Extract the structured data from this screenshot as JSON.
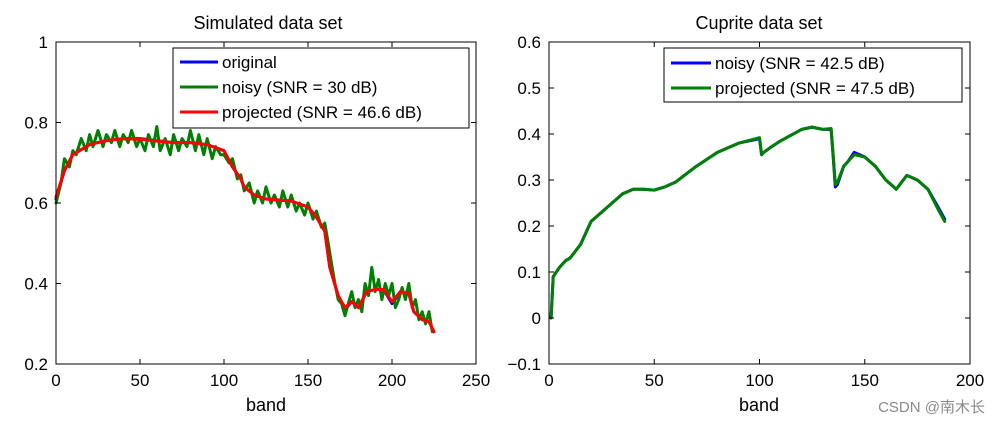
{
  "watermark": "CSDN @南木长",
  "chart_data": [
    {
      "type": "line",
      "title": "Simulated data set",
      "xlabel": "band",
      "ylabel": "",
      "xlim": [
        0,
        250
      ],
      "ylim": [
        0.2,
        1.0
      ],
      "xticks": [
        0,
        50,
        100,
        150,
        200,
        250
      ],
      "yticks": [
        0.2,
        0.4,
        0.6,
        0.8,
        1.0
      ],
      "xtick_labels": [
        "0",
        "50",
        "100",
        "150",
        "200",
        "250"
      ],
      "ytick_labels": [
        "0.2",
        "0.4",
        "0.6",
        "0.8",
        "1"
      ],
      "legend_position": "top-right",
      "series": [
        {
          "name": "original",
          "color": "#0000ff",
          "x": [
            0,
            5,
            10,
            20,
            30,
            40,
            50,
            60,
            70,
            80,
            90,
            100,
            105,
            110,
            112,
            118,
            125,
            140,
            150,
            155,
            160,
            163,
            168,
            172,
            176,
            180,
            185,
            190,
            195,
            200,
            205,
            210,
            213,
            218,
            222,
            225
          ],
          "y": [
            0.61,
            0.68,
            0.72,
            0.745,
            0.755,
            0.76,
            0.76,
            0.755,
            0.75,
            0.75,
            0.745,
            0.73,
            0.69,
            0.66,
            0.64,
            0.62,
            0.61,
            0.605,
            0.59,
            0.565,
            0.53,
            0.44,
            0.37,
            0.335,
            0.355,
            0.34,
            0.38,
            0.385,
            0.385,
            0.35,
            0.38,
            0.375,
            0.33,
            0.31,
            0.305,
            0.28
          ]
        },
        {
          "name": "noisy (SNR = 30 dB)",
          "color": "#008000",
          "x": [
            0,
            3,
            5,
            8,
            10,
            12,
            15,
            18,
            20,
            22,
            25,
            28,
            30,
            33,
            35,
            38,
            40,
            43,
            45,
            48,
            50,
            53,
            55,
            58,
            60,
            62,
            65,
            68,
            70,
            73,
            75,
            78,
            80,
            83,
            85,
            88,
            90,
            93,
            95,
            98,
            100,
            103,
            105,
            108,
            110,
            112,
            115,
            118,
            120,
            123,
            125,
            128,
            130,
            133,
            135,
            138,
            140,
            143,
            145,
            148,
            150,
            153,
            155,
            158,
            160,
            162,
            164,
            166,
            168,
            170,
            172,
            174,
            176,
            178,
            180,
            182,
            184,
            186,
            188,
            190,
            192,
            194,
            196,
            198,
            200,
            202,
            204,
            206,
            208,
            210,
            212,
            214,
            216,
            218,
            220,
            222,
            224
          ],
          "y": [
            0.6,
            0.65,
            0.71,
            0.69,
            0.73,
            0.72,
            0.76,
            0.73,
            0.77,
            0.74,
            0.78,
            0.74,
            0.77,
            0.75,
            0.78,
            0.74,
            0.77,
            0.75,
            0.78,
            0.74,
            0.76,
            0.73,
            0.77,
            0.74,
            0.79,
            0.73,
            0.76,
            0.72,
            0.77,
            0.73,
            0.76,
            0.74,
            0.78,
            0.73,
            0.77,
            0.72,
            0.76,
            0.71,
            0.74,
            0.72,
            0.72,
            0.7,
            0.71,
            0.66,
            0.67,
            0.63,
            0.65,
            0.6,
            0.63,
            0.6,
            0.64,
            0.6,
            0.62,
            0.59,
            0.63,
            0.59,
            0.62,
            0.58,
            0.6,
            0.57,
            0.6,
            0.56,
            0.58,
            0.54,
            0.55,
            0.5,
            0.45,
            0.4,
            0.36,
            0.35,
            0.32,
            0.35,
            0.38,
            0.34,
            0.36,
            0.33,
            0.4,
            0.37,
            0.44,
            0.38,
            0.41,
            0.36,
            0.4,
            0.37,
            0.4,
            0.34,
            0.36,
            0.39,
            0.36,
            0.4,
            0.34,
            0.36,
            0.31,
            0.33,
            0.3,
            0.33,
            0.28
          ]
        },
        {
          "name": "projected (SNR = 46.6 dB)",
          "color": "#ff0000",
          "x": [
            0,
            5,
            10,
            20,
            30,
            40,
            50,
            60,
            70,
            80,
            90,
            100,
            105,
            110,
            112,
            118,
            125,
            140,
            150,
            155,
            160,
            163,
            168,
            172,
            176,
            180,
            185,
            190,
            195,
            200,
            205,
            210,
            213,
            218,
            222,
            225
          ],
          "y": [
            0.615,
            0.68,
            0.72,
            0.745,
            0.755,
            0.76,
            0.758,
            0.754,
            0.75,
            0.75,
            0.745,
            0.73,
            0.69,
            0.66,
            0.64,
            0.62,
            0.61,
            0.605,
            0.59,
            0.565,
            0.53,
            0.44,
            0.37,
            0.34,
            0.355,
            0.34,
            0.38,
            0.385,
            0.385,
            0.355,
            0.38,
            0.375,
            0.33,
            0.31,
            0.305,
            0.28
          ]
        }
      ]
    },
    {
      "type": "line",
      "title": "Cuprite data set",
      "xlabel": "band",
      "ylabel": "",
      "xlim": [
        0,
        200
      ],
      "ylim": [
        -0.1,
        0.6
      ],
      "xticks": [
        0,
        50,
        100,
        150,
        200
      ],
      "yticks": [
        -0.1,
        0,
        0.1,
        0.2,
        0.3,
        0.4,
        0.5,
        0.6
      ],
      "xtick_labels": [
        "0",
        "50",
        "100",
        "150",
        "200"
      ],
      "ytick_labels": [
        "−0.1",
        "0",
        "0.1",
        "0.2",
        "0.3",
        "0.4",
        "0.5",
        "0.6"
      ],
      "legend_position": "top-right",
      "series": [
        {
          "name": "noisy (SNR = 42.5 dB)",
          "color": "#0000ff",
          "x": [
            1,
            2,
            5,
            8,
            10,
            15,
            20,
            25,
            30,
            35,
            40,
            45,
            50,
            55,
            60,
            70,
            80,
            90,
            100,
            101,
            102,
            105,
            110,
            120,
            125,
            130,
            134,
            135,
            136,
            137,
            140,
            142,
            145,
            150,
            155,
            160,
            165,
            170,
            175,
            180,
            185,
            188
          ],
          "y": [
            0.0,
            0.09,
            0.11,
            0.125,
            0.13,
            0.16,
            0.21,
            0.23,
            0.25,
            0.27,
            0.28,
            0.28,
            0.278,
            0.285,
            0.295,
            0.33,
            0.36,
            0.38,
            0.39,
            0.355,
            0.36,
            0.37,
            0.385,
            0.41,
            0.415,
            0.41,
            0.41,
            0.35,
            0.285,
            0.29,
            0.33,
            0.34,
            0.36,
            0.35,
            0.33,
            0.3,
            0.28,
            0.31,
            0.3,
            0.28,
            0.24,
            0.215
          ]
        },
        {
          "name": "projected (SNR = 47.5 dB)",
          "color": "#008000",
          "x": [
            1,
            2,
            5,
            8,
            10,
            15,
            20,
            25,
            30,
            35,
            40,
            45,
            50,
            55,
            60,
            70,
            80,
            90,
            100,
            101,
            102,
            105,
            110,
            120,
            125,
            130,
            134,
            135,
            136,
            137,
            140,
            142,
            145,
            150,
            155,
            160,
            165,
            170,
            175,
            180,
            185,
            188
          ],
          "y": [
            0.0,
            0.09,
            0.11,
            0.125,
            0.13,
            0.16,
            0.21,
            0.23,
            0.25,
            0.27,
            0.28,
            0.28,
            0.278,
            0.285,
            0.295,
            0.33,
            0.36,
            0.38,
            0.392,
            0.355,
            0.36,
            0.37,
            0.385,
            0.41,
            0.415,
            0.41,
            0.412,
            0.355,
            0.29,
            0.295,
            0.33,
            0.34,
            0.355,
            0.35,
            0.33,
            0.3,
            0.28,
            0.31,
            0.3,
            0.28,
            0.235,
            0.21
          ]
        }
      ]
    }
  ]
}
